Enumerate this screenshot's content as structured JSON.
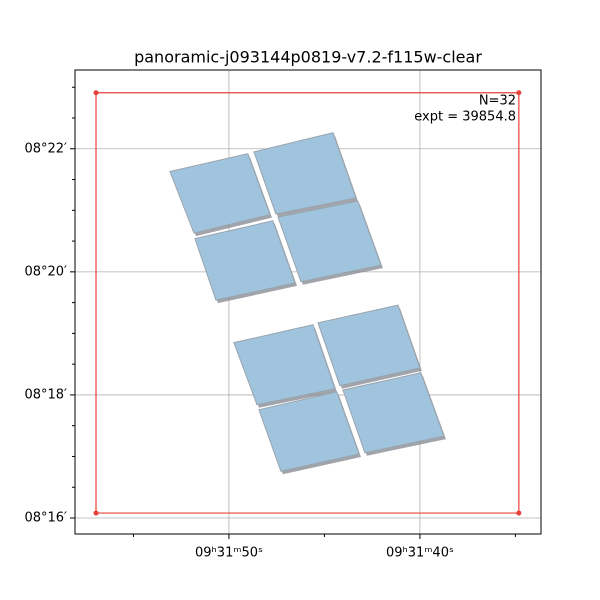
{
  "chart_data": {
    "type": "footprint",
    "title": "panoramic-j093144p0819-v7.2-f115w-clear",
    "annotations": [
      "N=32",
      "expt = 39854.8"
    ],
    "xlim": [
      58.06,
      33.66
    ],
    "ylim": [
      15.74,
      23.28
    ],
    "xticks": [
      {
        "value": 50,
        "label": "09ʰ31ᵐ50ˢ"
      },
      {
        "value": 40,
        "label": "09ʰ31ᵐ40ˢ"
      }
    ],
    "xminorticks": [
      55,
      45,
      35
    ],
    "yticks": [
      {
        "value": 22,
        "label": "08°22′"
      },
      {
        "value": 20,
        "label": "08°20′"
      },
      {
        "value": 18,
        "label": "08°18′"
      },
      {
        "value": 16,
        "label": "08°16′"
      }
    ],
    "yminorticks": [
      16.5,
      17,
      17.5,
      18.5,
      19,
      19.5,
      20.5,
      21,
      21.5,
      22.5,
      23
    ],
    "grid": true,
    "box": {
      "color": "#e8403a",
      "x": [
        56.96,
        34.82,
        34.82,
        56.96
      ],
      "y": [
        22.91,
        22.91,
        16.08,
        16.08
      ]
    },
    "color": "#a0c4de",
    "footprints": [
      {
        "x": [
          53.09,
          49.01,
          47.85,
          51.83
        ],
        "y": [
          21.63,
          21.92,
          20.93,
          20.63
        ]
      },
      {
        "x": [
          48.69,
          44.55,
          43.35,
          47.54
        ],
        "y": [
          21.95,
          22.26,
          21.2,
          20.94
        ]
      },
      {
        "x": [
          51.78,
          47.7,
          46.54,
          50.68
        ],
        "y": [
          20.54,
          20.83,
          19.82,
          19.54
        ]
      },
      {
        "x": [
          47.43,
          43.25,
          42.04,
          46.23
        ],
        "y": [
          20.89,
          21.15,
          20.11,
          19.84
        ]
      },
      {
        "x": [
          49.74,
          45.6,
          44.45,
          48.53
        ],
        "y": [
          18.85,
          19.14,
          18.1,
          17.84
        ]
      },
      {
        "x": [
          45.34,
          41.15,
          40.0,
          44.19
        ],
        "y": [
          19.17,
          19.46,
          18.44,
          18.15
        ]
      },
      {
        "x": [
          48.43,
          44.35,
          43.19,
          47.28
        ],
        "y": [
          17.76,
          18.05,
          17.04,
          16.76
        ]
      },
      {
        "x": [
          44.03,
          39.95,
          38.74,
          42.88
        ],
        "y": [
          18.08,
          18.36,
          17.33,
          17.06
        ]
      }
    ]
  }
}
